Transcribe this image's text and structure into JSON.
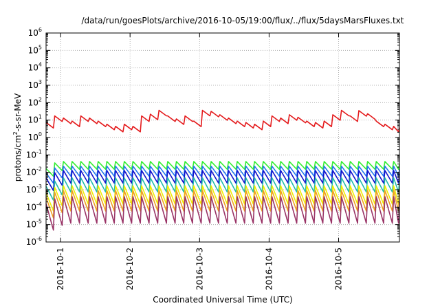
{
  "chart_data": {
    "type": "line",
    "title": "/data/run/goesPlots/archive/2016-10-05/19:00/flux/../flux/5daysMarsFluxes.txt",
    "xlabel": "Coordinated Universal Time (UTC)",
    "ylabel_parts": {
      "pre": "protons/cm",
      "sup": "2",
      "post": "-s-sr-MeV"
    },
    "y_scale": "log",
    "ylim": [
      1e-06,
      1000000.0
    ],
    "y_ticks": [
      {
        "base": "10",
        "exp": "-6",
        "value": 1e-06
      },
      {
        "base": "10",
        "exp": "-5",
        "value": 1e-05
      },
      {
        "base": "10",
        "exp": "-4",
        "value": 0.0001
      },
      {
        "base": "10",
        "exp": "-3",
        "value": 0.001
      },
      {
        "base": "10",
        "exp": "-2",
        "value": 0.01
      },
      {
        "base": "10",
        "exp": "-1",
        "value": 0.1
      },
      {
        "base": "10",
        "exp": "0",
        "value": 1
      },
      {
        "base": "10",
        "exp": "1",
        "value": 10
      },
      {
        "base": "10",
        "exp": "2",
        "value": 100
      },
      {
        "base": "10",
        "exp": "3",
        "value": 1000
      },
      {
        "base": "10",
        "exp": "4",
        "value": 10000
      },
      {
        "base": "10",
        "exp": "5",
        "value": 100000
      },
      {
        "base": "10",
        "exp": "6",
        "value": 1000000
      }
    ],
    "xlim": [
      "2016-09-30 19:00",
      "2016-10-05 21:00"
    ],
    "x_ticks": [
      {
        "label": "2016-10-1",
        "value": "2016-10-01 00:00"
      },
      {
        "label": "2016-10-2",
        "value": "2016-10-02 00:00"
      },
      {
        "label": "2016-10-3",
        "value": "2016-10-03 00:00"
      },
      {
        "label": "2016-10-4",
        "value": "2016-10-04 00:00"
      },
      {
        "label": "2016-10-5",
        "value": "2016-10-05 00:00"
      }
    ],
    "grid": true,
    "legend": "none",
    "x": [
      "2016-09-30 19:00",
      "2016-09-30 22:00",
      "2016-10-01 01:00",
      "2016-10-01 04:00",
      "2016-10-01 07:00",
      "2016-10-01 10:00",
      "2016-10-01 13:00",
      "2016-10-01 16:00",
      "2016-10-01 19:00",
      "2016-10-01 22:00",
      "2016-10-02 01:00",
      "2016-10-02 04:00",
      "2016-10-02 07:00",
      "2016-10-02 10:00",
      "2016-10-02 13:00",
      "2016-10-02 16:00",
      "2016-10-02 19:00",
      "2016-10-02 22:00",
      "2016-10-03 01:00",
      "2016-10-03 04:00",
      "2016-10-03 07:00",
      "2016-10-03 10:00",
      "2016-10-03 13:00",
      "2016-10-03 16:00",
      "2016-10-03 19:00",
      "2016-10-03 22:00",
      "2016-10-04 01:00",
      "2016-10-04 04:00",
      "2016-10-04 07:00",
      "2016-10-04 10:00",
      "2016-10-04 13:00",
      "2016-10-04 16:00",
      "2016-10-04 19:00",
      "2016-10-04 22:00",
      "2016-10-05 01:00",
      "2016-10-05 04:00",
      "2016-10-05 07:00",
      "2016-10-05 10:00",
      "2016-10-05 13:00",
      "2016-10-05 16:00",
      "2016-10-05 19:00",
      "2016-10-05 21:00"
    ],
    "series": [
      {
        "color": "#e41a1c",
        "values": [
          5,
          12,
          9,
          6,
          12,
          9,
          6,
          4,
          3,
          4,
          3,
          12,
          15,
          25,
          12,
          8,
          12,
          6,
          25,
          22,
          14,
          9,
          6,
          5,
          4,
          6,
          12,
          9,
          14,
          10,
          6,
          5,
          6,
          14,
          25,
          12,
          24,
          16,
          6,
          4,
          3,
          2.5
        ],
        "peak_factor": 1.45,
        "trough_factor": 0.7
      },
      {
        "color": "#33ee33",
        "values": [
          0.012,
          0.025,
          0.03,
          0.03,
          0.03,
          0.03,
          0.03,
          0.03,
          0.03,
          0.03,
          0.03,
          0.03,
          0.03,
          0.03,
          0.03,
          0.03,
          0.03,
          0.03,
          0.03,
          0.03,
          0.03,
          0.03,
          0.03,
          0.03,
          0.03,
          0.03,
          0.03,
          0.03,
          0.03,
          0.03,
          0.03,
          0.03,
          0.03,
          0.03,
          0.03,
          0.03,
          0.03,
          0.03,
          0.03,
          0.03,
          0.03,
          0.02
        ],
        "peak_factor": 1.4,
        "trough_factor": 0.5
      },
      {
        "color": "#2277ee",
        "values": [
          0.006,
          0.012,
          0.015,
          0.015,
          0.015,
          0.015,
          0.015,
          0.015,
          0.015,
          0.015,
          0.015,
          0.015,
          0.015,
          0.015,
          0.015,
          0.015,
          0.015,
          0.015,
          0.015,
          0.015,
          0.015,
          0.015,
          0.015,
          0.015,
          0.015,
          0.015,
          0.015,
          0.015,
          0.015,
          0.015,
          0.015,
          0.015,
          0.015,
          0.015,
          0.015,
          0.015,
          0.015,
          0.015,
          0.015,
          0.015,
          0.015,
          0.01
        ],
        "peak_factor": 1.5,
        "trough_factor": 0.4
      },
      {
        "color": "#1111cc",
        "values": [
          0.003,
          0.006,
          0.008,
          0.008,
          0.008,
          0.008,
          0.008,
          0.008,
          0.008,
          0.008,
          0.008,
          0.008,
          0.008,
          0.008,
          0.008,
          0.008,
          0.008,
          0.008,
          0.008,
          0.008,
          0.008,
          0.008,
          0.008,
          0.008,
          0.008,
          0.008,
          0.008,
          0.008,
          0.008,
          0.008,
          0.008,
          0.008,
          0.008,
          0.008,
          0.008,
          0.008,
          0.008,
          0.008,
          0.008,
          0.008,
          0.008,
          0.005
        ],
        "peak_factor": 1.6,
        "trough_factor": 0.3
      },
      {
        "color": "#22bbaa",
        "values": [
          0.001,
          0.002,
          0.003,
          0.003,
          0.003,
          0.003,
          0.003,
          0.003,
          0.003,
          0.003,
          0.003,
          0.003,
          0.003,
          0.003,
          0.003,
          0.003,
          0.003,
          0.003,
          0.003,
          0.003,
          0.003,
          0.003,
          0.003,
          0.003,
          0.003,
          0.003,
          0.003,
          0.003,
          0.003,
          0.003,
          0.003,
          0.003,
          0.003,
          0.003,
          0.003,
          0.003,
          0.003,
          0.003,
          0.003,
          0.003,
          0.003,
          0.002
        ],
        "peak_factor": 1.6,
        "trough_factor": 0.25
      },
      {
        "color": "#eeee00",
        "values": [
          0.0004,
          0.0008,
          0.001,
          0.001,
          0.001,
          0.001,
          0.001,
          0.001,
          0.001,
          0.001,
          0.001,
          0.001,
          0.001,
          0.001,
          0.001,
          0.001,
          0.001,
          0.001,
          0.001,
          0.001,
          0.001,
          0.001,
          0.001,
          0.001,
          0.001,
          0.001,
          0.001,
          0.001,
          0.001,
          0.001,
          0.001,
          0.001,
          0.001,
          0.001,
          0.001,
          0.001,
          0.001,
          0.001,
          0.001,
          0.001,
          0.001,
          0.0006
        ],
        "peak_factor": 1.7,
        "trough_factor": 0.15
      },
      {
        "color": "#f0a020",
        "values": [
          0.0002,
          0.0004,
          0.0005,
          0.0005,
          0.0005,
          0.0005,
          0.0005,
          0.0005,
          0.0005,
          0.0005,
          0.0005,
          0.0005,
          0.0005,
          0.0005,
          0.0005,
          0.0005,
          0.0005,
          0.0005,
          0.0005,
          0.0005,
          0.0005,
          0.0005,
          0.0005,
          0.0005,
          0.0005,
          0.0005,
          0.0005,
          0.0005,
          0.0005,
          0.0005,
          0.0005,
          0.0005,
          0.0005,
          0.0005,
          0.0005,
          0.0005,
          0.0005,
          0.0005,
          0.0005,
          0.0005,
          0.0005,
          0.0003
        ],
        "peak_factor": 1.8,
        "trough_factor": 0.12
      },
      {
        "color": "#993366",
        "values": [
          8e-05,
          0.00015,
          0.0002,
          0.0002,
          0.0002,
          0.0002,
          0.0002,
          0.0002,
          0.0002,
          0.0002,
          0.0002,
          0.0002,
          0.0002,
          0.0002,
          0.0002,
          0.0002,
          0.0002,
          0.0002,
          0.0002,
          0.0002,
          0.0002,
          0.0002,
          0.0002,
          0.0002,
          0.0002,
          0.0002,
          0.0002,
          0.0002,
          0.0002,
          0.0002,
          0.0002,
          0.0002,
          0.0002,
          0.0002,
          0.0002,
          0.0002,
          0.0002,
          0.0002,
          0.0002,
          0.0002,
          0.0002,
          0.0001
        ],
        "peak_factor": 2.0,
        "trough_factor": 0.06
      }
    ]
  }
}
